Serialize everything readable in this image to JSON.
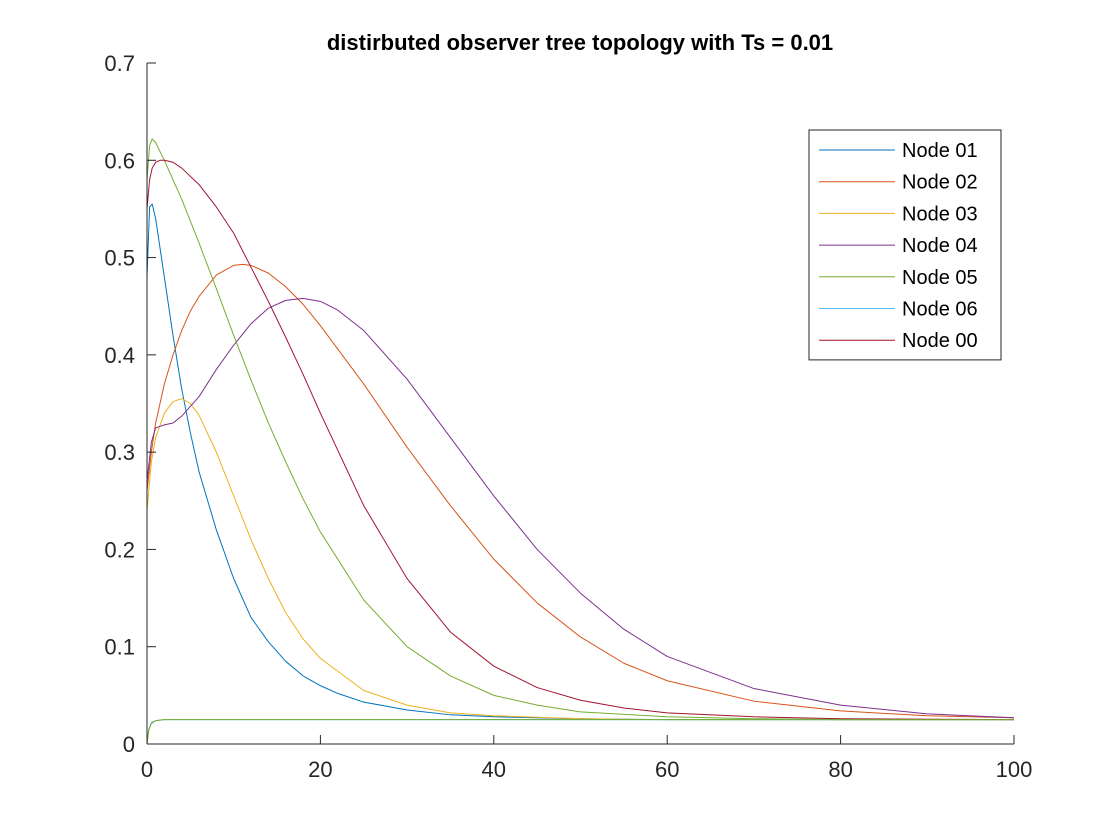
{
  "chart_data": {
    "type": "line",
    "title": "distirbuted observer tree topology with Ts = 0.01",
    "xlabel": "",
    "ylabel": "",
    "xlim": [
      0,
      100
    ],
    "ylim": [
      0,
      0.7
    ],
    "xticks": [
      0,
      20,
      40,
      60,
      80,
      100
    ],
    "yticks": [
      0,
      0.1,
      0.2,
      0.3,
      0.4,
      0.5,
      0.6,
      0.7
    ],
    "grid": false,
    "legend_position": "top-right",
    "series": [
      {
        "name": "Node 01",
        "color": "#0072BD",
        "x": [
          0,
          0.3,
          0.6,
          1,
          2,
          3,
          4,
          5,
          6,
          8,
          10,
          12,
          14,
          16,
          18,
          20,
          22,
          25,
          30,
          35,
          40,
          50,
          60,
          80,
          100
        ],
        "y": [
          0.48,
          0.552,
          0.555,
          0.54,
          0.48,
          0.42,
          0.365,
          0.32,
          0.28,
          0.22,
          0.17,
          0.13,
          0.105,
          0.085,
          0.07,
          0.06,
          0.052,
          0.043,
          0.035,
          0.03,
          0.028,
          0.026,
          0.025,
          0.025,
          0.025
        ]
      },
      {
        "name": "Node 02",
        "color": "#D95319",
        "x": [
          0,
          0.5,
          1,
          2,
          3,
          4,
          5,
          6,
          8,
          10,
          11,
          12,
          14,
          16,
          18,
          20,
          25,
          30,
          35,
          40,
          45,
          50,
          55,
          60,
          70,
          80,
          90,
          100
        ],
        "y": [
          0.26,
          0.3,
          0.33,
          0.37,
          0.4,
          0.425,
          0.445,
          0.46,
          0.482,
          0.492,
          0.493,
          0.492,
          0.484,
          0.47,
          0.452,
          0.43,
          0.37,
          0.305,
          0.245,
          0.19,
          0.145,
          0.11,
          0.083,
          0.065,
          0.044,
          0.034,
          0.029,
          0.027
        ]
      },
      {
        "name": "Node 03",
        "color": "#EDB120",
        "x": [
          0,
          0.5,
          1,
          2,
          3,
          4,
          5,
          6,
          8,
          10,
          12,
          14,
          16,
          18,
          20,
          25,
          30,
          35,
          40,
          50,
          60,
          80,
          100
        ],
        "y": [
          0.24,
          0.29,
          0.315,
          0.34,
          0.352,
          0.355,
          0.35,
          0.338,
          0.3,
          0.255,
          0.21,
          0.17,
          0.135,
          0.108,
          0.088,
          0.055,
          0.04,
          0.032,
          0.029,
          0.026,
          0.025,
          0.025,
          0.025
        ]
      },
      {
        "name": "Node 04",
        "color": "#7E2F8E",
        "x": [
          0,
          0.5,
          1,
          2,
          3,
          4,
          6,
          8,
          10,
          12,
          14,
          16,
          18,
          20,
          22,
          25,
          30,
          35,
          40,
          45,
          50,
          55,
          60,
          70,
          80,
          90,
          100
        ],
        "y": [
          0.27,
          0.31,
          0.325,
          0.328,
          0.33,
          0.337,
          0.357,
          0.385,
          0.41,
          0.432,
          0.448,
          0.456,
          0.458,
          0.455,
          0.446,
          0.425,
          0.375,
          0.315,
          0.255,
          0.2,
          0.155,
          0.118,
          0.09,
          0.057,
          0.04,
          0.031,
          0.027
        ]
      },
      {
        "name": "Node 05",
        "color": "#77AC30",
        "x": [
          0,
          0.3,
          0.6,
          1,
          2,
          4,
          6,
          8,
          10,
          12,
          14,
          16,
          18,
          20,
          25,
          30,
          35,
          40,
          45,
          50,
          60,
          70,
          80,
          100
        ],
        "y": [
          0.58,
          0.615,
          0.622,
          0.618,
          0.6,
          0.56,
          0.515,
          0.468,
          0.42,
          0.374,
          0.33,
          0.29,
          0.252,
          0.218,
          0.148,
          0.1,
          0.07,
          0.05,
          0.04,
          0.033,
          0.028,
          0.026,
          0.025,
          0.025
        ]
      },
      {
        "name": "Node 06",
        "color": "#4DBEEE",
        "x": [
          0,
          0.2,
          0.5,
          1,
          2,
          5,
          20,
          50,
          100
        ],
        "y": [
          0.0,
          0.015,
          0.022,
          0.024,
          0.025,
          0.025,
          0.025,
          0.025,
          0.025
        ]
      },
      {
        "name": "Node 00",
        "color": "#A2142F",
        "x": [
          0,
          0.3,
          0.6,
          1,
          1.5,
          2,
          3,
          4,
          6,
          8,
          10,
          12,
          14,
          16,
          18,
          20,
          25,
          30,
          35,
          40,
          45,
          50,
          55,
          60,
          70,
          80,
          100
        ],
        "y": [
          0.55,
          0.58,
          0.592,
          0.598,
          0.6,
          0.6,
          0.598,
          0.592,
          0.575,
          0.552,
          0.525,
          0.49,
          0.455,
          0.418,
          0.38,
          0.34,
          0.245,
          0.17,
          0.115,
          0.08,
          0.058,
          0.045,
          0.037,
          0.032,
          0.028,
          0.026,
          0.025
        ]
      },
      {
        "name": "",
        "color": "#77AC30",
        "x": [
          0,
          0.2,
          0.5,
          1,
          2,
          5,
          20,
          50,
          100
        ],
        "y": [
          0.0,
          0.014,
          0.021,
          0.024,
          0.025,
          0.025,
          0.025,
          0.025,
          0.025
        ]
      }
    ]
  }
}
